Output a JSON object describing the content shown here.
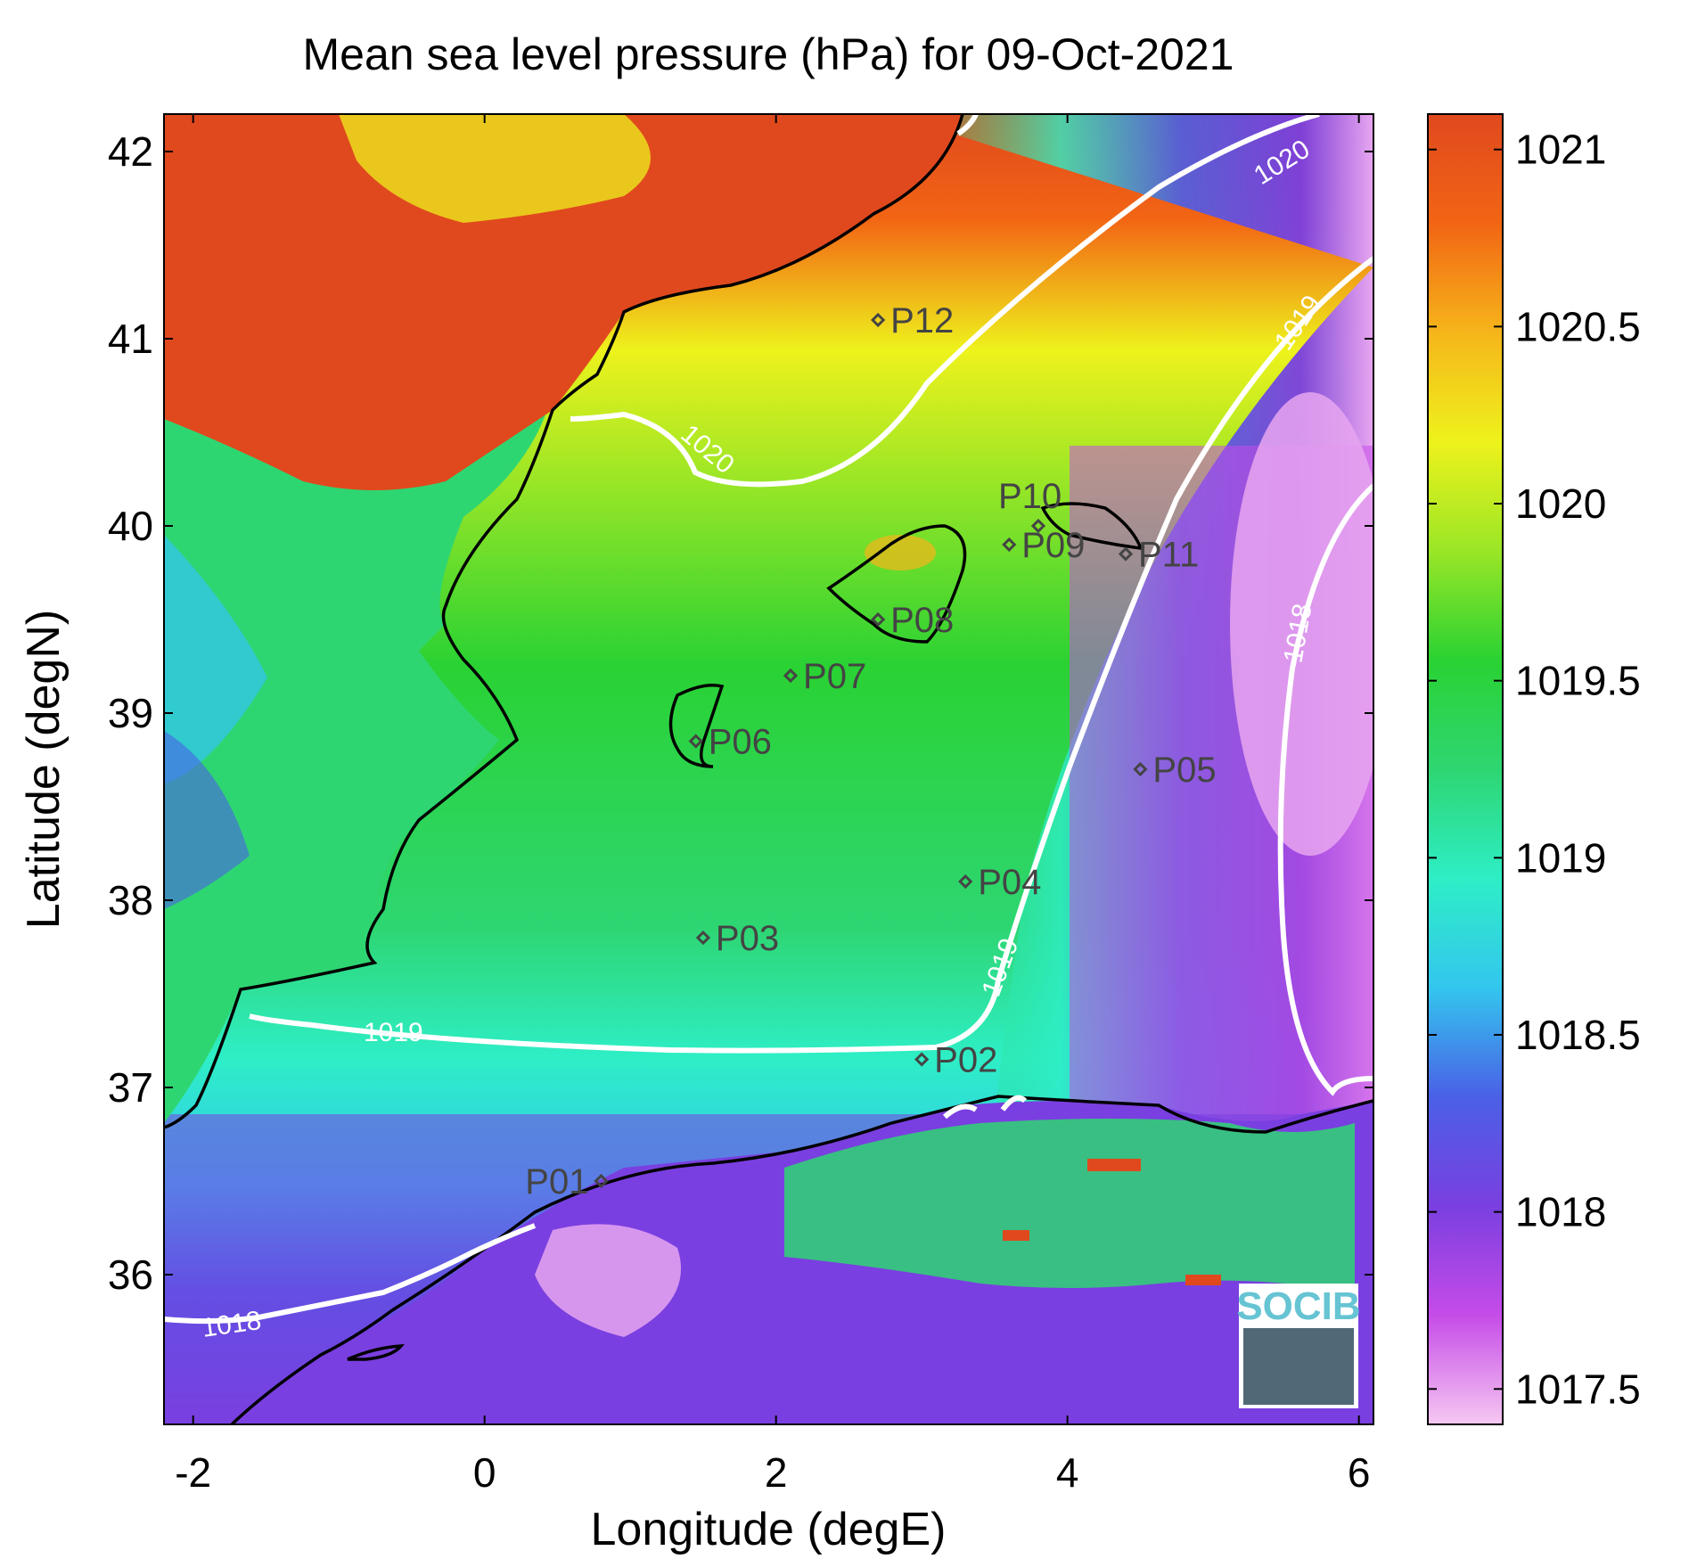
{
  "title": "Mean sea level pressure (hPa) for 09-Oct-2021",
  "xlabel": "Longitude (degE)",
  "ylabel": "Latitude (degN)",
  "map_extent": {
    "lon": [
      -2.2,
      6.1
    ],
    "lat": [
      35.2,
      42.2
    ]
  },
  "xticks": [
    "-2",
    "0",
    "2",
    "4",
    "6"
  ],
  "yticks": [
    "36",
    "37",
    "38",
    "39",
    "40",
    "41",
    "42"
  ],
  "colorbar": {
    "ticks": [
      "1017.5",
      "1018",
      "1018.5",
      "1019",
      "1019.5",
      "1020",
      "1020.5",
      "1021"
    ],
    "range": [
      1017.4,
      1021.1
    ],
    "colors": [
      "#f6c8f2",
      "#c64ce8",
      "#7a3fe0",
      "#4a60e6",
      "#33c6ee",
      "#2eeec6",
      "#2ed672",
      "#2ad233",
      "#9ae626",
      "#eef21c",
      "#f6b51a",
      "#f26514",
      "#e0491e"
    ]
  },
  "contour_labels": [
    "1020",
    "1020",
    "1019",
    "1019",
    "1019",
    "1018",
    "1018"
  ],
  "stations": [
    {
      "id": "P01",
      "lon": 0.8,
      "lat": 36.5
    },
    {
      "id": "P02",
      "lon": 3.0,
      "lat": 37.15
    },
    {
      "id": "P03",
      "lon": 1.5,
      "lat": 37.8
    },
    {
      "id": "P04",
      "lon": 3.3,
      "lat": 38.1
    },
    {
      "id": "P05",
      "lon": 4.5,
      "lat": 38.7
    },
    {
      "id": "P06",
      "lon": 1.45,
      "lat": 38.85
    },
    {
      "id": "P07",
      "lon": 2.1,
      "lat": 39.2
    },
    {
      "id": "P08",
      "lon": 2.7,
      "lat": 39.5
    },
    {
      "id": "P09",
      "lon": 3.6,
      "lat": 39.9
    },
    {
      "id": "P10",
      "lon": 3.8,
      "lat": 40.0
    },
    {
      "id": "P11",
      "lon": 4.4,
      "lat": 39.85
    },
    {
      "id": "P12",
      "lon": 2.7,
      "lat": 41.1
    }
  ],
  "logo": "SOCIB"
}
